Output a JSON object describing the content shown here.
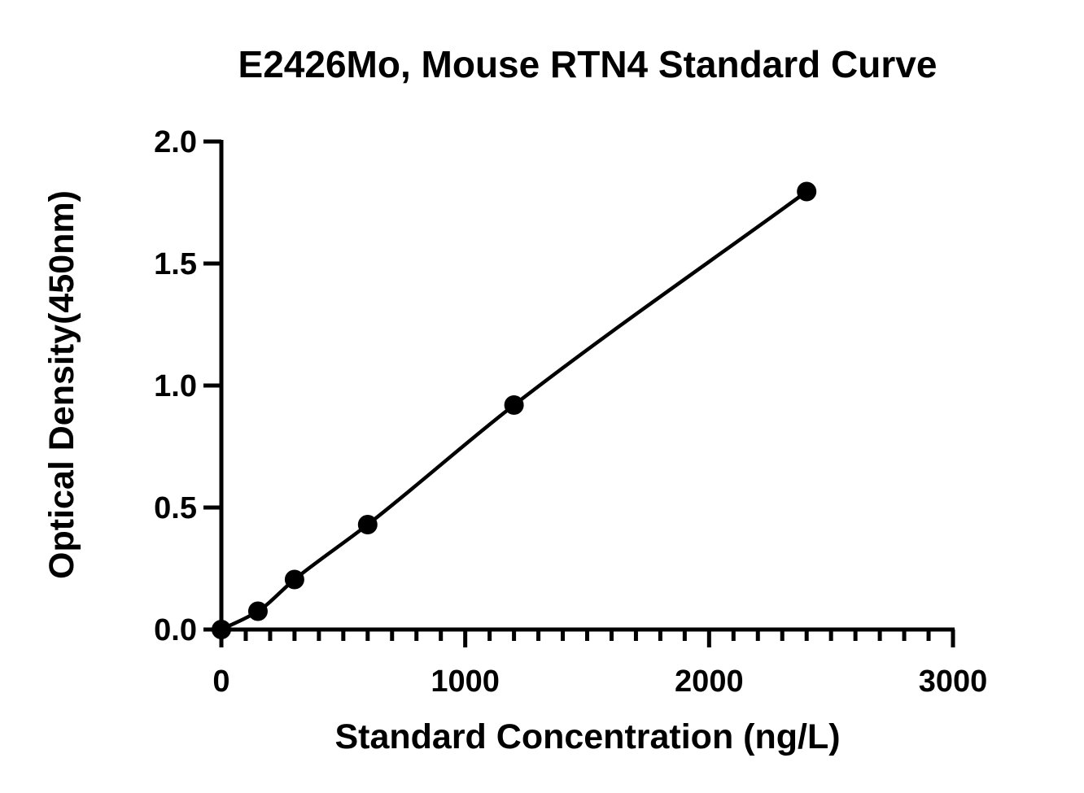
{
  "chart_data": {
    "type": "scatter",
    "title": "E2426Mo, Mouse RTN4 Standard Curve",
    "xlabel": "Standard Concentration (ng/L)",
    "ylabel": "Optical Density(450nm)",
    "xlim": [
      0,
      3000
    ],
    "ylim": [
      0,
      2.0
    ],
    "x_ticks": [
      0,
      1000,
      2000,
      3000
    ],
    "x_tick_labels": [
      "0",
      "1000",
      "2000",
      "3000"
    ],
    "x_minor_step": 100,
    "y_ticks": [
      0,
      0.5,
      1.0,
      1.5,
      2.0
    ],
    "y_tick_labels": [
      "0.0",
      "0.5",
      "1.0",
      "1.5",
      "2.0"
    ],
    "grid": false,
    "legend": "none",
    "series": [
      {
        "x": [
          0,
          150,
          300,
          600,
          1200,
          2400
        ],
        "y": [
          0.0,
          0.075,
          0.205,
          0.43,
          0.92,
          1.795
        ],
        "color": "#000000",
        "marker": "filled-circle",
        "fit_line": true
      }
    ]
  }
}
